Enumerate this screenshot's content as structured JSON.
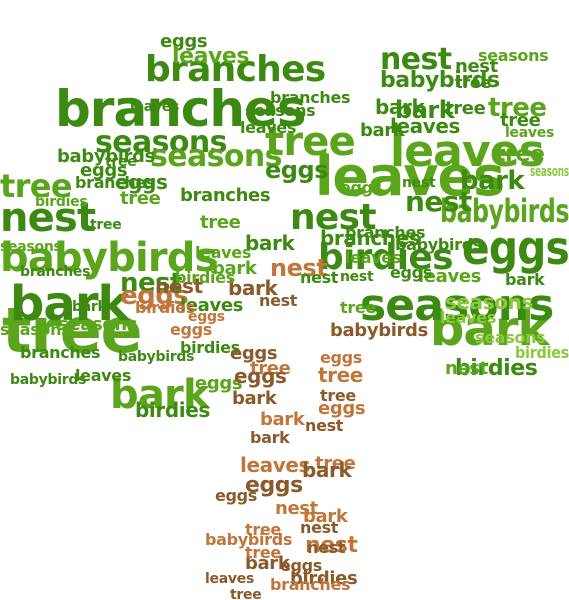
{
  "word_cloud": {
    "vocabulary": [
      "tree",
      "leaves",
      "branches",
      "nest",
      "bark",
      "babybirds",
      "birdies",
      "eggs",
      "seasons"
    ],
    "colors": {
      "canopy_dark": "#3d8a12",
      "canopy_mid": "#5aa51c",
      "canopy_light": "#8ac83c",
      "trunk_brown": "#8a5a2b",
      "trunk_orange": "#c0763a",
      "faint": "#e6eedc"
    },
    "words": [
      {
        "text": "tree"
      },
      {
        "text": "bark"
      },
      {
        "text": "nest"
      },
      {
        "text": "babybirds"
      },
      {
        "text": "branches"
      },
      {
        "text": "branches"
      },
      {
        "text": "leaves"
      },
      {
        "text": "leaves"
      },
      {
        "text": "eggs"
      },
      {
        "text": "seasons"
      },
      {
        "text": "seasons"
      },
      {
        "text": "bark"
      },
      {
        "text": "bark"
      },
      {
        "text": "nest"
      },
      {
        "text": "nest"
      },
      {
        "text": "tree"
      },
      {
        "text": "tree"
      },
      {
        "text": "birdies"
      },
      {
        "text": "babybirds"
      },
      {
        "text": "seasons"
      },
      {
        "text": "branches"
      },
      {
        "text": "eggs"
      },
      {
        "text": "babybirds"
      },
      {
        "text": "nest"
      },
      {
        "text": "birdies"
      },
      {
        "text": "bark"
      },
      {
        "text": "bark"
      },
      {
        "text": "nest"
      },
      {
        "text": "eggs"
      },
      {
        "text": "seasons"
      },
      {
        "text": "leaves"
      },
      {
        "text": "tree"
      },
      {
        "text": "babybirds"
      },
      {
        "text": "birdies"
      },
      {
        "text": "bark"
      },
      {
        "text": "bark"
      },
      {
        "text": "eggs"
      },
      {
        "text": "seasons"
      },
      {
        "text": "eggs"
      },
      {
        "text": "bark"
      },
      {
        "text": "tree"
      },
      {
        "text": "leaves"
      },
      {
        "text": "nest"
      },
      {
        "text": "leaves"
      },
      {
        "text": "branches"
      },
      {
        "text": "babybirds"
      },
      {
        "text": "birdies"
      },
      {
        "text": "eggs"
      },
      {
        "text": "bark"
      },
      {
        "text": "tree"
      },
      {
        "text": "leaves"
      },
      {
        "text": "eggs"
      },
      {
        "text": "nest"
      },
      {
        "text": "birdies"
      },
      {
        "text": "bark"
      },
      {
        "text": "tree"
      },
      {
        "text": "eggs"
      },
      {
        "text": "nest"
      },
      {
        "text": "tree"
      },
      {
        "text": "nest"
      },
      {
        "text": "bark"
      },
      {
        "text": "tree"
      },
      {
        "text": "eggs"
      },
      {
        "text": "bark"
      },
      {
        "text": "nest"
      },
      {
        "text": "tree"
      },
      {
        "text": "bark"
      },
      {
        "text": "eggs"
      },
      {
        "text": "nest"
      },
      {
        "text": "tree"
      },
      {
        "text": "nest"
      },
      {
        "text": "eggs"
      },
      {
        "text": "branches"
      },
      {
        "text": "bark"
      },
      {
        "text": "eggs"
      },
      {
        "text": "babybirds"
      },
      {
        "text": "leaves"
      },
      {
        "text": "tree"
      },
      {
        "text": "eggs"
      },
      {
        "text": "nest"
      },
      {
        "text": "bark"
      },
      {
        "text": "birdies"
      },
      {
        "text": "leaves"
      },
      {
        "text": "seasons"
      },
      {
        "text": "tree"
      },
      {
        "text": "birdies"
      },
      {
        "text": "babybirds"
      },
      {
        "text": "seasons"
      },
      {
        "text": "birdies"
      },
      {
        "text": "tree"
      },
      {
        "text": "leaves"
      },
      {
        "text": "nest"
      },
      {
        "text": "leaves"
      },
      {
        "text": "bark"
      },
      {
        "text": "tree"
      },
      {
        "text": "eggs"
      },
      {
        "text": "branches"
      },
      {
        "text": "birdies"
      },
      {
        "text": "leaves"
      },
      {
        "text": "seasons"
      },
      {
        "text": "nest"
      },
      {
        "text": "babybirds"
      },
      {
        "text": "tree"
      },
      {
        "text": "eggs"
      },
      {
        "text": "branches"
      },
      {
        "text": "leaves"
      },
      {
        "text": "nest"
      },
      {
        "text": "seasons"
      },
      {
        "text": "branches"
      },
      {
        "text": "eggs"
      },
      {
        "text": "tree"
      },
      {
        "text": "tree"
      },
      {
        "text": "leaves"
      },
      {
        "text": "seasons"
      },
      {
        "text": "leaves"
      },
      {
        "text": "branches"
      },
      {
        "text": "eggs"
      },
      {
        "text": "bark"
      },
      {
        "text": "nest"
      },
      {
        "text": "tree"
      },
      {
        "text": "babybirds"
      },
      {
        "text": "branches"
      },
      {
        "text": "bark"
      },
      {
        "text": "leaves"
      },
      {
        "text": "seasons"
      },
      {
        "text": "nest"
      },
      {
        "text": "eggs"
      },
      {
        "text": "tree"
      }
    ]
  }
}
